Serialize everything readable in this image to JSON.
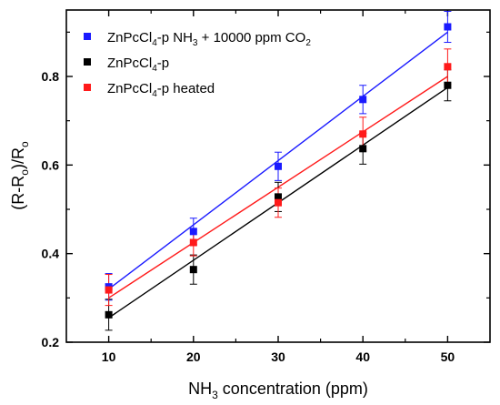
{
  "chart_data": {
    "type": "scatter",
    "x": [
      10,
      20,
      30,
      40,
      50
    ],
    "xlim": [
      5,
      55
    ],
    "ylim": [
      0.2,
      0.95
    ],
    "xticks": [
      "10",
      "20",
      "30",
      "40",
      "50"
    ],
    "yticks": [
      "0.2",
      "0.4",
      "0.6",
      "0.8"
    ],
    "xlabel": {
      "pre": "NH",
      "sub": "3",
      "post": " concentration (ppm)"
    },
    "ylabel": {
      "p1": "(R-R",
      "s1": "o",
      "p2": ")/R",
      "s2": "o"
    },
    "legend_position": "top-left",
    "grid": false,
    "series": [
      {
        "name": {
          "a": "ZnPcCl",
          "b": "4",
          "c": "-p NH",
          "d": "3",
          "e": " + 10000 ppm CO",
          "f": "2"
        },
        "color": "#1a1aff",
        "values": [
          0.325,
          0.45,
          0.597,
          0.748,
          0.912
        ],
        "errors": [
          0.03,
          0.03,
          0.032,
          0.032,
          0.035
        ],
        "fit": [
          0.32,
          0.9
        ]
      },
      {
        "name": {
          "a": "ZnPcCl",
          "b": "4",
          "c": "-p",
          "d": "",
          "e": "",
          "f": ""
        },
        "color": "#000000",
        "values": [
          0.262,
          0.364,
          0.528,
          0.637,
          0.78
        ],
        "errors": [
          0.035,
          0.033,
          0.033,
          0.035,
          0.035
        ],
        "fit": [
          0.255,
          0.775
        ]
      },
      {
        "name": {
          "a": "ZnPcCl",
          "b": "4",
          "c": "-p heated",
          "d": "",
          "e": "",
          "f": ""
        },
        "color": "#ff1a1a",
        "values": [
          0.318,
          0.425,
          0.515,
          0.67,
          0.822
        ],
        "errors": [
          0.035,
          0.03,
          0.033,
          0.038,
          0.04
        ],
        "fit": [
          0.3,
          0.8
        ]
      }
    ]
  }
}
